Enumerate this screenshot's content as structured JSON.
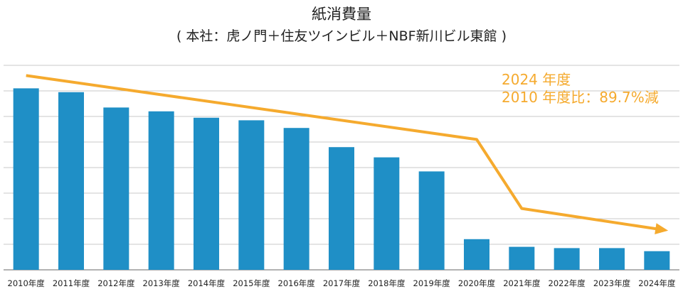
{
  "title": "紙消費量",
  "subtitle": "( 本社：虎ノ門＋住友ツインビル＋NBF新川ビル東館 )",
  "annotation": {
    "line1": "2024 年度",
    "line2": "2010 年度比：89.7%減"
  },
  "colors": {
    "bar": "#1F8FC6",
    "trend": "#F5AA2E",
    "grid": "#c8c8c8"
  },
  "chart_data": {
    "type": "bar",
    "categories": [
      "2010年度",
      "2011年度",
      "2012年度",
      "2013年度",
      "2014年度",
      "2015年度",
      "2016年度",
      "2017年度",
      "2018年度",
      "2019年度",
      "2020年度",
      "2021年度",
      "2022年度",
      "2023年度",
      "2024年度"
    ],
    "values": [
      7.1,
      6.95,
      6.35,
      6.2,
      5.95,
      5.85,
      5.55,
      4.8,
      4.4,
      3.85,
      1.2,
      0.9,
      0.85,
      0.85,
      0.73
    ],
    "ylim": [
      0,
      8
    ],
    "grid": true,
    "trend_line": [
      {
        "x": "2010年度",
        "y": 7.6
      },
      {
        "x": "2020年度",
        "y": 5.1
      },
      {
        "x": "2021年度",
        "y": 2.4
      },
      {
        "x": "2024年度",
        "y": 1.6
      }
    ]
  }
}
